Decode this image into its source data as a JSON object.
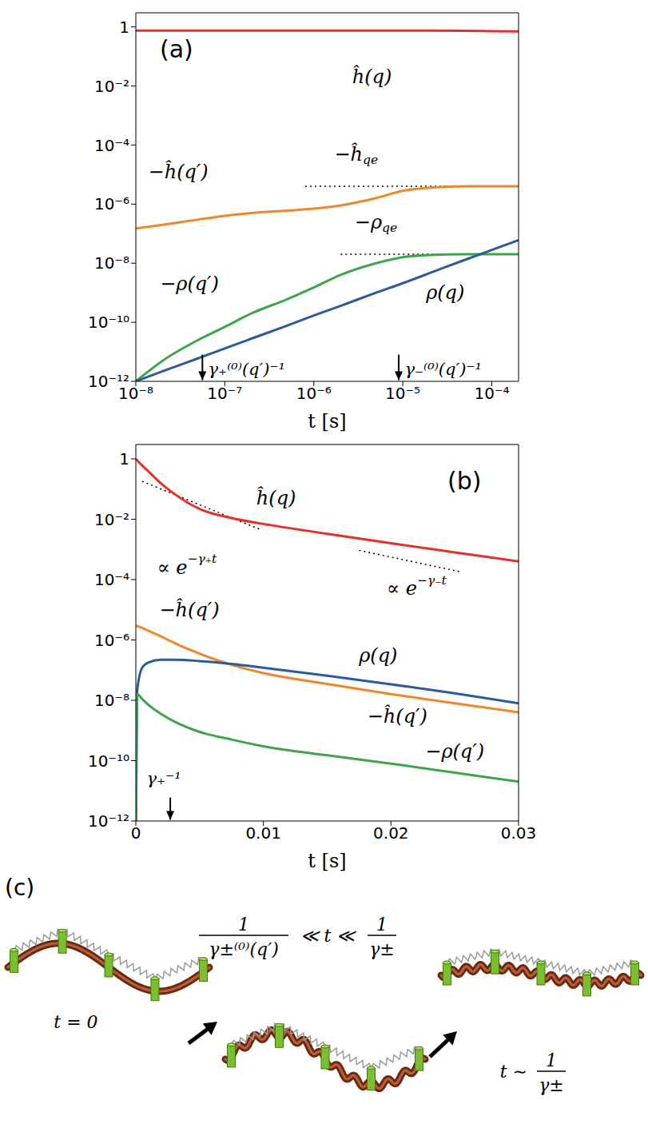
{
  "chart_data": [
    {
      "type": "line",
      "panel_label": "(a)",
      "x_label": "t [s]",
      "log": true,
      "xlim": [
        1e-08,
        0.0002
      ],
      "xticks": [
        {
          "value": 1e-08,
          "label": "10⁻⁸"
        },
        {
          "value": 1e-07,
          "label": "10⁻⁷"
        },
        {
          "value": 1e-06,
          "label": "10⁻⁶"
        },
        {
          "value": 1e-05,
          "label": "10⁻⁵"
        },
        {
          "value": 0.0001,
          "label": "10⁻⁴"
        }
      ],
      "ylim": [
        1e-12,
        3
      ],
      "yticks": [
        1,
        {
          "value": 0.01,
          "label": "10⁻²"
        },
        {
          "value": 0.0001,
          "label": "10⁻⁴"
        },
        {
          "value": 1e-06,
          "label": "10⁻⁶"
        },
        {
          "value": 1e-08,
          "label": "10⁻⁸"
        },
        {
          "value": 1e-10,
          "label": "10⁻¹⁰"
        },
        {
          "value": 1e-12,
          "label": "10⁻¹²"
        }
      ],
      "x": [
        1e-08,
        2e-08,
        5e-08,
        1e-07,
        2e-07,
        5e-07,
        1e-06,
        2e-06,
        5e-06,
        1e-05,
        2e-05,
        5e-05,
        0.0001,
        0.0002
      ],
      "series": [
        {
          "name": "ĥ(q)",
          "color": "#e8302a",
          "values": [
            0.75,
            0.75,
            0.75,
            0.75,
            0.75,
            0.75,
            0.75,
            0.75,
            0.75,
            0.75,
            0.75,
            0.74,
            0.72,
            0.7
          ],
          "label_at": [
            {
              "x": 4.5e-06,
              "y": 0.02
            }
          ]
        },
        {
          "name": "−ĥ(q′)",
          "color": "#f0862c",
          "values": [
            1.5e-07,
            2e-07,
            3e-07,
            4e-07,
            5e-07,
            6e-07,
            7e-07,
            9e-07,
            1.6e-06,
            2.8e-06,
            3.6e-06,
            4e-06,
            4e-06,
            4e-06
          ],
          "label_at": [
            {
              "x": 3e-08,
              "y": 1.2e-05
            }
          ]
        },
        {
          "name": "−ρ(q′)",
          "color": "#3da649",
          "values": [
            1e-12,
            5e-12,
            2.5e-11,
            7e-11,
            2e-10,
            6e-10,
            1.5e-09,
            4e-09,
            1e-08,
            1.6e-08,
            1.9e-08,
            2e-08,
            2e-08,
            2e-08
          ],
          "label_at": [
            {
              "x": 4e-08,
              "y": 2e-09
            }
          ]
        },
        {
          "name": "ρ(q)",
          "color": "#2c5aa0",
          "values": [
            1e-12,
            2.2e-12,
            6e-12,
            1.3e-11,
            2.8e-11,
            7.7e-11,
            1.7e-10,
            3.6e-10,
            1e-09,
            2.1e-09,
            4.6e-09,
            1.3e-08,
            2.8e-08,
            6e-08
          ],
          "label_at": [
            {
              "x": 3e-05,
              "y": 1e-09
            }
          ]
        }
      ],
      "reference_lines": [
        {
          "x_from": 8e-07,
          "y_from": 4e-06,
          "x_to": 0.0002,
          "y_to": 4e-06,
          "line_style": "dotted"
        },
        {
          "x_from": 2e-06,
          "y_from": 2e-08,
          "x_to": 0.0002,
          "y_to": 2e-08,
          "line_style": "dotted"
        }
      ],
      "annotations": [
        {
          "text": "−ĥ",
          "subscript": "qe",
          "x": 3e-06,
          "y": 5e-05
        },
        {
          "text": "−ρ",
          "subscript": "qe",
          "x": 5e-06,
          "y": 2.5e-07
        }
      ],
      "arrows": [
        {
          "text": "γ₊⁽⁰⁾(q′)⁻¹",
          "x": 5.6e-08,
          "y_from": 8e-12,
          "y_to": 1.1e-12,
          "text_x": 6.5e-08,
          "text_y": 2.5e-12
        },
        {
          "text": "γ₋⁽⁰⁾(q′)⁻¹",
          "x": 9e-06,
          "y_from": 8e-12,
          "y_to": 1.1e-12,
          "text_x": 1.05e-05,
          "text_y": 2.5e-12
        }
      ]
    },
    {
      "type": "line",
      "panel_label": "(b)",
      "x_label": "t [s]",
      "log": "y",
      "xlim": [
        0,
        0.03
      ],
      "xticks": [
        0,
        0.01,
        0.02,
        0.03
      ],
      "ylim": [
        1e-12,
        3
      ],
      "yticks": [
        1,
        {
          "value": 0.01,
          "label": "10⁻²"
        },
        {
          "value": 0.0001,
          "label": "10⁻⁴"
        },
        {
          "value": 1e-06,
          "label": "10⁻⁶"
        },
        {
          "value": 1e-08,
          "label": "10⁻⁸"
        },
        {
          "value": 1e-10,
          "label": "10⁻¹⁰"
        },
        {
          "value": 1e-12,
          "label": "10⁻¹²"
        }
      ],
      "x": [
        0,
        0.0001,
        0.0005,
        0.001,
        0.002,
        0.003,
        0.005,
        0.0075,
        0.01,
        0.015,
        0.02,
        0.025,
        0.03
      ],
      "series": [
        {
          "name": "ĥ(q)",
          "color": "#e8302a",
          "values": [
            1,
            0.9,
            0.6,
            0.38,
            0.15,
            0.07,
            0.022,
            0.011,
            0.007,
            0.0033,
            0.0016,
            0.0008,
            0.0004
          ],
          "label_at": [
            {
              "x": 0.011,
              "y": 0.05
            }
          ]
        },
        {
          "name": "−ĥ(q′)",
          "color": "#f0862c",
          "values": [
            3e-06,
            2.9e-06,
            2.5e-06,
            2e-06,
            1.3e-06,
            8e-07,
            3.5e-07,
            1.5e-07,
            8e-08,
            3.5e-08,
            1.6e-08,
            8e-09,
            4e-09
          ],
          "label_at": [
            {
              "x": 0.0042,
              "y": 1e-05
            },
            {
              "x": 0.0205,
              "y": 3e-09
            }
          ]
        },
        {
          "name": "ρ(q)",
          "color": "#2c5aa0",
          "values": [
            1e-13,
            2e-08,
            1.2e-07,
            1.8e-07,
            2.2e-07,
            2.2e-07,
            2e-07,
            1.6e-07,
            1.2e-07,
            6.5e-08,
            3.4e-08,
            1.7e-08,
            8e-09
          ],
          "label_at": [
            {
              "x": 0.019,
              "y": 3e-07
            }
          ]
        },
        {
          "name": "−ρ(q′)",
          "color": "#3da649",
          "values": [
            1e-13,
            1.6e-08,
            1.1e-08,
            7e-09,
            3.5e-09,
            2e-09,
            9e-10,
            5e-10,
            3e-10,
            1.5e-10,
            8e-11,
            4e-11,
            2e-11
          ],
          "label_at": [
            {
              "x": 0.025,
              "y": 2e-10
            }
          ]
        }
      ],
      "reference_lines": [
        {
          "x_from": 0.0005,
          "y_from": 0.18,
          "x_to": 0.0099,
          "y_to": 0.0043,
          "line_style": "dotted"
        },
        {
          "x_from": 0.0175,
          "y_from": 0.00093,
          "x_to": 0.0255,
          "y_to": 0.00018,
          "line_style": "dotted"
        }
      ],
      "annotations": [
        {
          "text": "∝ e",
          "superscript": "−γ₊t",
          "x": 0.004,
          "y": 0.00025
        },
        {
          "text": "∝ e",
          "superscript": "−γ₋t",
          "x": 0.022,
          "y": 5e-05
        }
      ],
      "arrows": [
        {
          "text": "γ₊⁻¹",
          "x": 0.0027,
          "y_from": 6e-12,
          "y_to": 1.1e-12,
          "text_x": 0.0022,
          "text_y": 2.5e-11
        }
      ]
    }
  ],
  "diagram": {
    "panel_label": "(c)",
    "stages": [
      {
        "label": "t = 0"
      },
      {
        "condition": {
          "left": {
            "numerator": "1",
            "denominator": "γ±⁽⁰⁾(q′)"
          },
          "relation": "≪ t ≪",
          "right": {
            "numerator": "1",
            "denominator": "γ±"
          }
        }
      },
      {
        "condition": {
          "prefix": "t ∼",
          "fraction": {
            "numerator": "1",
            "denominator": "γ±"
          }
        }
      }
    ]
  }
}
